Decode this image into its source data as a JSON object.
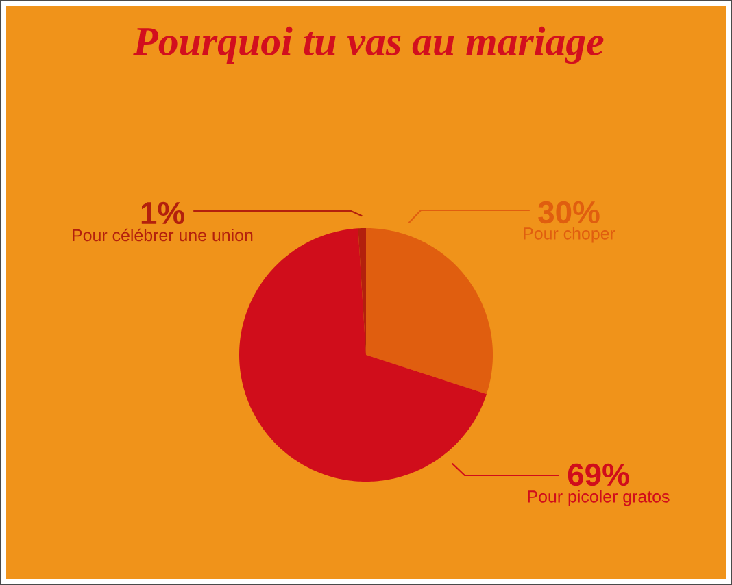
{
  "chart_data": {
    "type": "pie",
    "title": "Pourquoi tu vas au mariage",
    "categories": [
      "Pour choper",
      "Pour picoler gratos",
      "Pour célébrer une union"
    ],
    "values": [
      30,
      69,
      1
    ],
    "colors": [
      "#e05e0f",
      "#d00d1b",
      "#b3200d"
    ],
    "value_labels": [
      "30%",
      "69%",
      "1%"
    ]
  }
}
